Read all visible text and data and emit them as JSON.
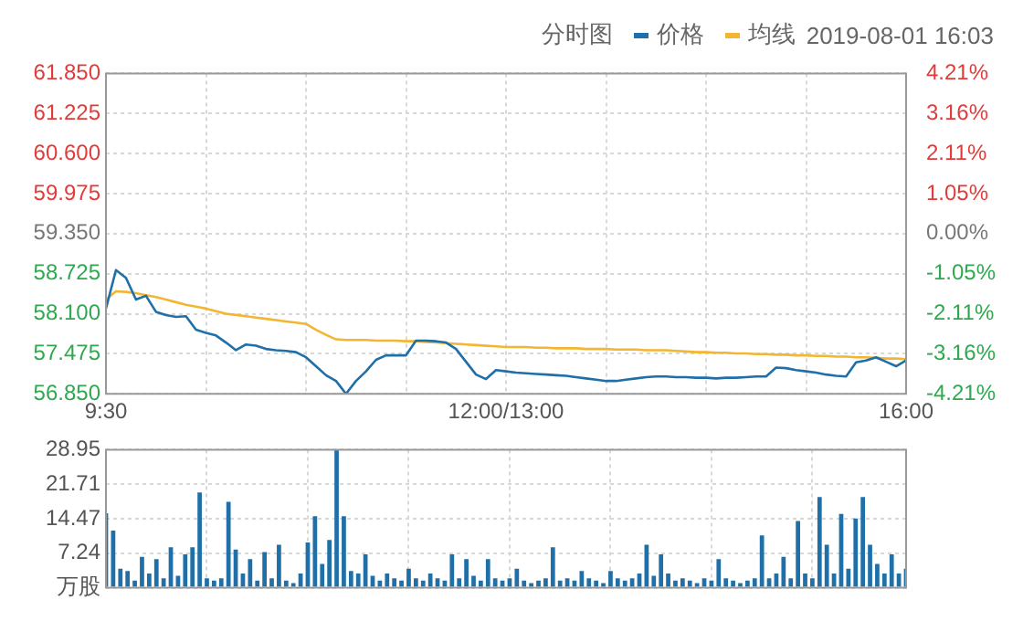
{
  "chart_data": [
    {
      "type": "line",
      "title": "分时图",
      "subtitle": "2019-08-01 16:03",
      "legend": "top",
      "grid": true,
      "marker": "none",
      "line_style": "solid",
      "categories": [
        "9:30",
        null,
        null,
        null,
        null,
        null,
        null,
        null,
        null,
        null,
        null,
        null,
        null,
        null,
        null,
        null,
        null,
        null,
        null,
        null,
        null,
        null,
        null,
        null,
        null,
        null,
        null,
        null,
        null,
        null,
        null,
        null,
        null,
        null,
        null,
        null,
        null,
        null,
        null,
        null,
        "12:00/13:00",
        null,
        null,
        null,
        null,
        null,
        null,
        null,
        null,
        null,
        null,
        null,
        null,
        null,
        null,
        null,
        null,
        null,
        null,
        null,
        null,
        null,
        null,
        null,
        null,
        null,
        null,
        null,
        null,
        null,
        null,
        null,
        null,
        null,
        null,
        null,
        null,
        null,
        null,
        null,
        "16:00"
      ],
      "ylim": [
        56.85,
        61.85
      ],
      "yticks": [
        {
          "value": 56.85,
          "label": "56.850"
        },
        57.475,
        {
          "value": 58.1,
          "label": "58.100"
        },
        58.725,
        {
          "value": 59.35,
          "label": "59.350"
        },
        59.975,
        {
          "value": 60.6,
          "label": "60.600"
        },
        61.225,
        {
          "value": 61.85,
          "label": "61.850"
        }
      ],
      "y2lim": [
        -4.21,
        4.21
      ],
      "y2ticks": [
        {
          "value": -4.21,
          "label": "-4.21%"
        },
        {
          "value": -3.16,
          "label": "-3.16%"
        },
        {
          "value": -2.11,
          "label": "-2.11%"
        },
        {
          "value": -1.05,
          "label": "-1.05%"
        },
        {
          "value": 0,
          "label": "0.00%"
        },
        {
          "value": 1.05,
          "label": "1.05%"
        },
        {
          "value": 2.11,
          "label": "2.11%"
        },
        {
          "value": 3.16,
          "label": "3.16%"
        },
        {
          "value": 4.21,
          "label": "4.21%"
        }
      ],
      "series": [
        {
          "name": "价格",
          "color": "#1f6fa8",
          "values": [
            58.18,
            58.78,
            58.66,
            58.32,
            58.38,
            58.13,
            58.08,
            58.05,
            58.06,
            57.85,
            57.8,
            57.76,
            57.65,
            57.53,
            57.62,
            57.6,
            57.55,
            57.53,
            57.52,
            57.5,
            57.42,
            57.28,
            57.14,
            57.05,
            56.85,
            57.05,
            57.2,
            57.38,
            57.45,
            57.45,
            57.45,
            57.68,
            57.68,
            57.67,
            57.65,
            57.55,
            57.35,
            57.15,
            57.08,
            57.22,
            57.2,
            57.18,
            57.17,
            57.16,
            57.15,
            57.14,
            57.13,
            57.11,
            57.09,
            57.07,
            57.05,
            57.05,
            57.07,
            57.09,
            57.11,
            57.12,
            57.12,
            57.11,
            57.11,
            57.1,
            57.1,
            57.09,
            57.1,
            57.1,
            57.11,
            57.12,
            57.12,
            57.26,
            57.25,
            57.22,
            57.2,
            57.18,
            57.15,
            57.13,
            57.12,
            57.34,
            57.37,
            57.42,
            57.35,
            57.28,
            57.37
          ]
        },
        {
          "name": "均线",
          "color": "#f2b632",
          "values": [
            58.32,
            58.45,
            58.44,
            58.42,
            58.39,
            58.36,
            58.32,
            58.28,
            58.24,
            58.21,
            58.18,
            58.14,
            58.1,
            58.08,
            58.06,
            58.04,
            58.02,
            58,
            57.98,
            57.96,
            57.94,
            57.85,
            57.77,
            57.7,
            57.69,
            57.69,
            57.69,
            57.68,
            57.68,
            57.68,
            57.67,
            57.67,
            57.66,
            57.65,
            57.64,
            57.63,
            57.62,
            57.61,
            57.6,
            57.59,
            57.58,
            57.58,
            57.58,
            57.57,
            57.57,
            57.56,
            57.56,
            57.56,
            57.55,
            57.55,
            57.55,
            57.54,
            57.54,
            57.54,
            57.53,
            57.53,
            57.53,
            57.52,
            57.51,
            57.5,
            57.5,
            57.49,
            57.49,
            57.48,
            57.48,
            57.47,
            57.47,
            57.46,
            57.46,
            57.45,
            57.45,
            57.44,
            57.44,
            57.43,
            57.43,
            57.42,
            57.42,
            57.41,
            57.4,
            57.4,
            57.39
          ]
        }
      ]
    },
    {
      "type": "bar",
      "grid": true,
      "tick_labels": "y",
      "color": "#1f6fa8",
      "ylim": [
        0,
        28.95
      ],
      "yticks": [
        {
          "value": 0,
          "label": "万股"
        },
        7.24,
        14.47,
        21.71,
        28.95
      ],
      "categories": [
        null,
        null,
        null,
        null,
        null,
        null,
        null,
        null,
        null,
        null,
        null,
        null,
        null,
        null,
        null,
        null,
        null,
        null,
        null,
        null,
        null,
        null,
        null,
        null,
        null,
        null,
        null,
        null,
        null,
        null,
        null,
        null,
        null,
        null,
        null,
        null,
        null,
        null,
        null,
        null,
        null,
        null,
        null,
        null,
        null,
        null,
        null,
        null,
        null,
        null,
        null,
        null,
        null,
        null,
        null,
        null,
        null,
        null,
        null,
        null,
        null,
        null,
        null,
        null,
        null,
        null,
        null,
        null,
        null,
        null,
        null,
        null,
        null,
        null,
        null,
        null,
        null,
        null,
        null,
        null,
        null,
        null,
        null,
        null,
        null,
        null,
        null,
        null,
        null,
        null,
        null,
        null,
        null,
        null,
        null,
        null,
        null,
        null,
        null,
        null,
        null,
        null,
        null,
        null,
        null,
        null,
        null,
        null,
        null,
        null,
        null,
        null
      ],
      "values": [
        15.6,
        12,
        4,
        3.5,
        1.5,
        6.5,
        3,
        6,
        2,
        8.5,
        2.5,
        7,
        8.5,
        20,
        2,
        1.5,
        2,
        18,
        8,
        3,
        6,
        1.5,
        7.5,
        2,
        9,
        1.5,
        1,
        3,
        9.5,
        15,
        5,
        10,
        28.95,
        15,
        3.5,
        3,
        7,
        2.5,
        1.5,
        3,
        2,
        1.5,
        4,
        2,
        1.5,
        3,
        2,
        1.5,
        7,
        2,
        6,
        2.5,
        1.5,
        6,
        2,
        1.5,
        2,
        4,
        1.5,
        1,
        1.5,
        2,
        8.5,
        1.5,
        2,
        1.5,
        3.5,
        2,
        1.5,
        1,
        3.5,
        2,
        1.5,
        2,
        3,
        9,
        2.5,
        7,
        3,
        1.5,
        2,
        1.5,
        1,
        2,
        1.5,
        6,
        2,
        1.5,
        1,
        1.5,
        2,
        11,
        2,
        3,
        6.5,
        2,
        14,
        3,
        2,
        19,
        9,
        3,
        15.5,
        4,
        14.5,
        19,
        9,
        5,
        3,
        7,
        3,
        4
      ]
    }
  ]
}
